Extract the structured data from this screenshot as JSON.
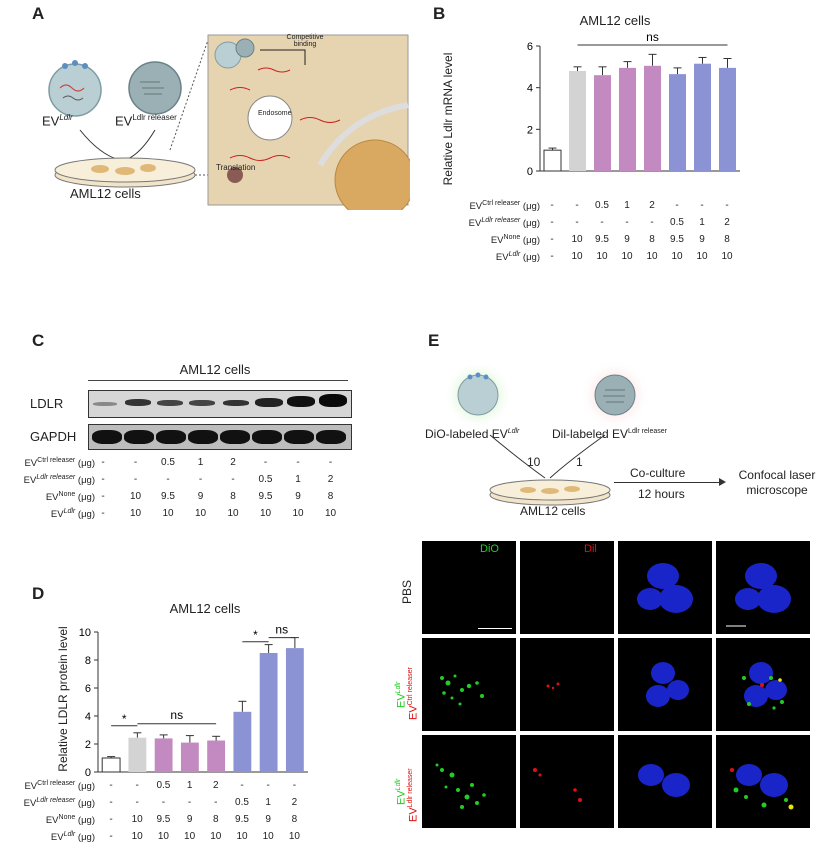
{
  "panels": {
    "A": {
      "letter": "A",
      "ev_ldlr_label": "EV",
      "ev_ldlr_sup": "Ldlr",
      "ev_releaser_label": "EV",
      "ev_releaser_sup": "Ldlr releaser",
      "dish_label": "AML12 cells",
      "inset_competitive": "Competitive binding",
      "inset_endosome": "Endosome",
      "inset_translation": "Translation"
    },
    "B": {
      "letter": "B",
      "title": "AML12 cells",
      "ylabel": "Relative Ldlr mRNA level",
      "sig": "ns"
    },
    "C": {
      "letter": "C",
      "title": "AML12 cells",
      "blot_labels": [
        "LDLR",
        "GAPDH"
      ]
    },
    "D": {
      "letter": "D",
      "title": "AML12 cells",
      "ylabel": "Relative LDLR protein level",
      "sig1": "*",
      "sig2": "ns",
      "sig3": "*",
      "sig4": "ns"
    },
    "E": {
      "letter": "E",
      "dio_label": "DiO-labeled EV",
      "dio_sup": "Ldlr",
      "dil_label": "Dil-labeled EV",
      "dil_sup": "Ldlr releaser",
      "ratio_left": "10",
      "ratio_right": "1",
      "dish_label": "AML12 cells",
      "coculture": "Co-culture",
      "hours": "12 hours",
      "confocal": "Confocal laser microscope",
      "col_dio": "DiO",
      "col_dil": "Dil",
      "row_pbs": "PBS",
      "row2_top": "EV",
      "row2_top_sup": "Ldlr",
      "row2_bottom": "EV",
      "row2_bottom_sup": "Ctrl releaser",
      "row3_top": "EV",
      "row3_top_sup": "Ldlr",
      "row3_bottom": "EV",
      "row3_bottom_sup": "Ldlr releaser"
    }
  },
  "treatment_table": {
    "row_labels": [
      {
        "main": "EV",
        "sup": "Ctrl releaser",
        "unit": " (μg)"
      },
      {
        "main": "EV",
        "sup": "Ldlr releaser",
        "unit": " (μg)"
      },
      {
        "main": "EV",
        "sup": "None",
        "unit": " (μg)"
      },
      {
        "main": "EV",
        "sup": "Ldlr",
        "unit": " (μg)"
      }
    ],
    "rows": [
      [
        "-",
        "-",
        "0.5",
        "1",
        "2",
        "-",
        "-",
        "-"
      ],
      [
        "-",
        "-",
        "-",
        "-",
        "-",
        "0.5",
        "1",
        "2"
      ],
      [
        "-",
        "10",
        "9.5",
        "9",
        "8",
        "9.5",
        "9",
        "8"
      ],
      [
        "-",
        "10",
        "10",
        "10",
        "10",
        "10",
        "10",
        "10"
      ]
    ]
  },
  "chart_data": [
    {
      "type": "bar",
      "title": "AML12 cells",
      "ylabel": "Relative Ldlr mRNA level",
      "ylim": [
        0,
        6
      ],
      "yticks": [
        0,
        2,
        4,
        6
      ],
      "values": [
        1.0,
        4.8,
        4.6,
        4.95,
        5.05,
        4.65,
        5.15,
        4.95
      ],
      "errors": [
        0.1,
        0.2,
        0.4,
        0.3,
        0.55,
        0.3,
        0.3,
        0.45
      ],
      "colors": [
        "#ffffff",
        "#d3d3d3",
        "#c28ac0",
        "#c28ac0",
        "#c28ac0",
        "#8c93d4",
        "#8c93d4",
        "#8c93d4"
      ]
    },
    {
      "type": "bar",
      "title": "AML12 cells",
      "ylabel": "Relative LDLR protein level",
      "ylim": [
        0,
        10
      ],
      "yticks": [
        0,
        2,
        4,
        6,
        8,
        10
      ],
      "values": [
        1.0,
        2.45,
        2.4,
        2.1,
        2.25,
        4.3,
        8.5,
        8.85
      ],
      "errors": [
        0.1,
        0.35,
        0.25,
        0.5,
        0.3,
        0.75,
        0.6,
        0.75
      ],
      "colors": [
        "#ffffff",
        "#d3d3d3",
        "#c28ac0",
        "#c28ac0",
        "#c28ac0",
        "#8c93d4",
        "#8c93d4",
        "#8c93d4"
      ]
    }
  ],
  "colors": {
    "ctrl": "#c28ac0",
    "ldlr": "#8c93d4",
    "grey": "#d3d3d3",
    "dio_green": "#22cc22",
    "dil_red": "#dd1111"
  }
}
